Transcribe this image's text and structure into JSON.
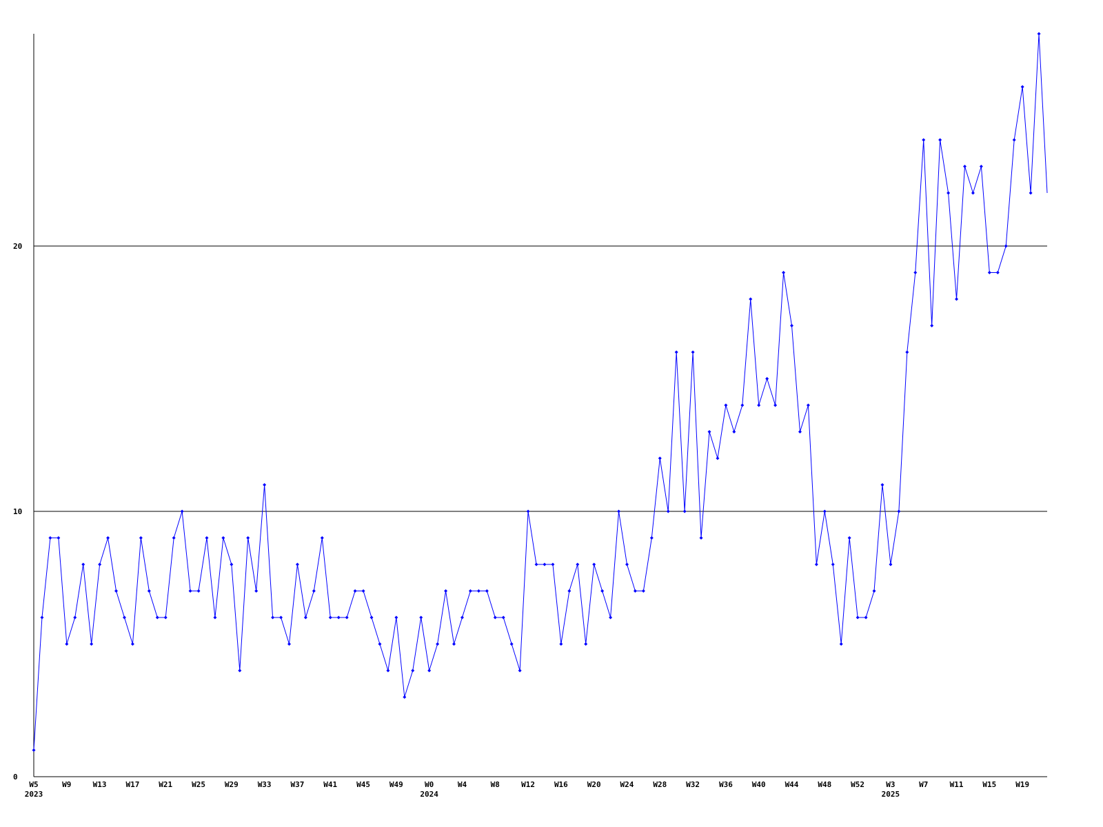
{
  "chart_data": {
    "type": "line",
    "categories": [
      "W5\n2023",
      null,
      null,
      null,
      "W9",
      null,
      null,
      null,
      "W13",
      null,
      null,
      null,
      "W17",
      null,
      null,
      null,
      "W21",
      null,
      null,
      null,
      "W25",
      null,
      null,
      null,
      "W29",
      null,
      null,
      null,
      "W33",
      null,
      null,
      null,
      "W37",
      null,
      null,
      null,
      "W41",
      null,
      null,
      null,
      "W45",
      null,
      null,
      null,
      "W49",
      null,
      null,
      null,
      "W0\n2024",
      null,
      null,
      null,
      "W4",
      null,
      null,
      null,
      "W8",
      null,
      null,
      null,
      "W12",
      null,
      null,
      null,
      "W16",
      null,
      null,
      null,
      "W20",
      null,
      null,
      null,
      "W24",
      null,
      null,
      null,
      "W28",
      null,
      null,
      null,
      "W32",
      null,
      null,
      null,
      "W36",
      null,
      null,
      null,
      "W40",
      null,
      null,
      null,
      "W44",
      null,
      null,
      null,
      "W48",
      null,
      null,
      null,
      "W52",
      null,
      null,
      null,
      "W3\n2025",
      null,
      null,
      null,
      "W7",
      null,
      null,
      null,
      "W11",
      null,
      null,
      null,
      "W15",
      null,
      null,
      null,
      "W19",
      null,
      null,
      null
    ],
    "values": [
      1,
      6,
      9,
      9,
      5,
      6,
      8,
      5,
      8,
      9,
      7,
      6,
      5,
      9,
      7,
      6,
      6,
      9,
      10,
      7,
      7,
      9,
      6,
      9,
      8,
      4,
      9,
      7,
      11,
      6,
      6,
      5,
      8,
      6,
      7,
      9,
      6,
      6,
      6,
      7,
      7,
      6,
      5,
      4,
      6,
      3,
      4,
      6,
      4,
      5,
      7,
      5,
      6,
      7,
      7,
      7,
      6,
      6,
      5,
      4,
      10,
      8,
      8,
      8,
      5,
      7,
      8,
      5,
      8,
      7,
      6,
      10,
      8,
      7,
      7,
      9,
      12,
      10,
      16,
      10,
      16,
      9,
      13,
      12,
      14,
      13,
      14,
      18,
      14,
      15,
      14,
      19,
      17,
      13,
      14,
      8,
      10,
      8,
      5,
      9,
      6,
      6,
      7,
      11,
      8,
      10,
      16,
      19,
      24,
      17,
      24,
      22,
      18,
      23,
      22,
      23,
      19,
      19,
      20,
      24,
      26,
      22,
      28,
      22
    ],
    "color": "#0000ff",
    "ylim": [
      0,
      28
    ],
    "yticks": [
      0,
      10,
      20
    ],
    "grid": true
  }
}
